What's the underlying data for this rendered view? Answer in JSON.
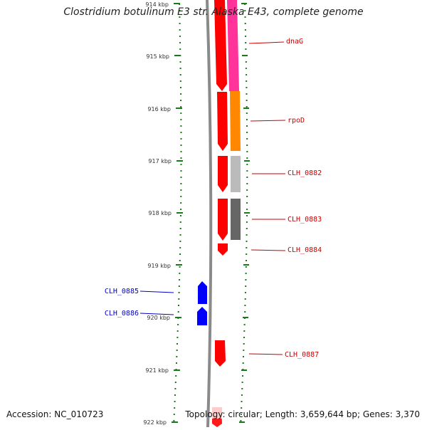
{
  "title": "Clostridium botulinum E3 str. Alaska E43, complete genome",
  "footer": {
    "accession": "Accession: NC_010723",
    "summary": "Topology: circular; Length: 3,659,644 bp; Genes: 3,370"
  },
  "ruler": {
    "ticks": [
      "914 kbp",
      "915 kbp",
      "916 kbp",
      "917 kbp",
      "918 kbp",
      "919 kbp",
      "920 kbp",
      "921 kbp",
      "922 kbp"
    ]
  },
  "genes": [
    {
      "label": "dnaG",
      "color": "#cc0000",
      "strand": "forward"
    },
    {
      "label": "rpoD",
      "color": "#cc0000",
      "strand": "forward"
    },
    {
      "label": "CLH_0882",
      "color": "#cc0000",
      "strand": "forward"
    },
    {
      "label": "CLH_0883",
      "color": "#cc0000",
      "strand": "forward"
    },
    {
      "label": "CLH_0884",
      "color": "#cc0000",
      "strand": "forward"
    },
    {
      "label": "CLH_0885",
      "color": "#0000cc",
      "strand": "reverse"
    },
    {
      "label": "CLH_0886",
      "color": "#0000cc",
      "strand": "reverse"
    },
    {
      "label": "CLH_0887",
      "color": "#cc0000",
      "strand": "forward"
    }
  ],
  "colors": {
    "forward_gene": "#ff0000",
    "reverse_gene": "#0000ff",
    "backbone": "#888888",
    "tick": "#1a7a1a",
    "cog_dnaG": "#ff3399",
    "cog_rpoD": "#ff8800",
    "cog_CLH_0882": "#bbbbbb",
    "cog_CLH_0883": "#666666"
  }
}
